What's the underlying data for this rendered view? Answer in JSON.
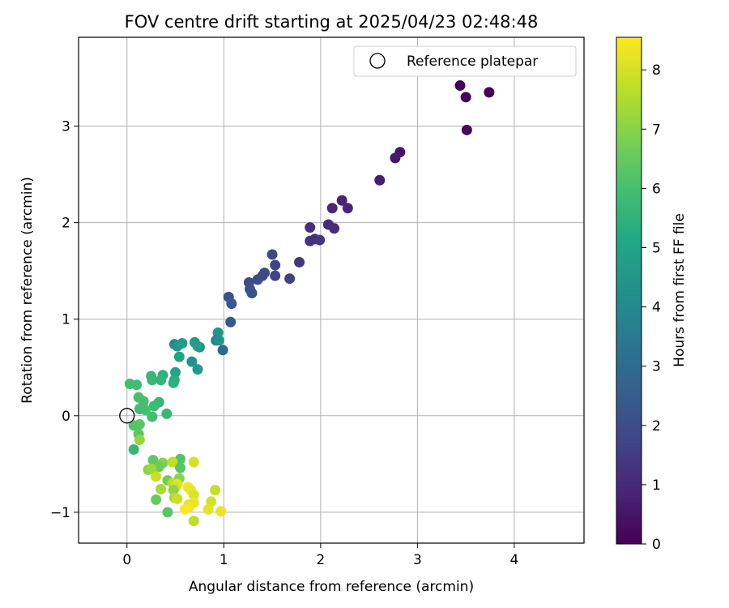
{
  "chart_data": {
    "type": "scatter",
    "title": "FOV centre drift starting at 2025/04/23 02:48:48",
    "xlabel": "Angular distance from reference (arcmin)",
    "ylabel": "Rotation from reference (arcmin)",
    "xlim": [
      -0.5,
      4.72
    ],
    "ylim": [
      -1.32,
      3.92
    ],
    "xticks": [
      0,
      1,
      2,
      3,
      4
    ],
    "yticks": [
      -1,
      0,
      1,
      2,
      3
    ],
    "xtick_labels": [
      "0",
      "1",
      "2",
      "3",
      "4"
    ],
    "ytick_labels": [
      "−1",
      "0",
      "1",
      "2",
      "3"
    ],
    "grid": true,
    "legend": {
      "position": "top-right",
      "entries": [
        {
          "label": "Reference platepar",
          "marker": "open-circle"
        }
      ]
    },
    "reference_point": {
      "x": 0,
      "y": 0
    },
    "colorbar": {
      "label": "Hours from first FF file",
      "min": 0,
      "max": 8.55,
      "ticks": [
        0,
        1,
        2,
        3,
        4,
        5,
        6,
        7,
        8
      ],
      "tick_labels": [
        "0",
        "1",
        "2",
        "3",
        "4",
        "5",
        "6",
        "7",
        "8"
      ],
      "colormap": "viridis",
      "colors": [
        "#440154",
        "#482475",
        "#414487",
        "#355f8d",
        "#2a788e",
        "#21918c",
        "#22a884",
        "#44bf70",
        "#7ad151",
        "#bddf26",
        "#fde725"
      ]
    },
    "series": [
      {
        "points": [
          {
            "x": 3.44,
            "y": 3.42,
            "c": 0.05
          },
          {
            "x": 3.5,
            "y": 3.3,
            "c": 0.12
          },
          {
            "x": 3.74,
            "y": 3.35,
            "c": 0.1
          },
          {
            "x": 3.51,
            "y": 2.96,
            "c": 0.2
          },
          {
            "x": 2.82,
            "y": 2.73,
            "c": 0.5
          },
          {
            "x": 2.77,
            "y": 2.67,
            "c": 0.55
          },
          {
            "x": 2.61,
            "y": 2.44,
            "c": 0.7
          },
          {
            "x": 2.22,
            "y": 2.23,
            "c": 0.9
          },
          {
            "x": 2.28,
            "y": 2.15,
            "c": 0.95
          },
          {
            "x": 2.12,
            "y": 2.15,
            "c": 1.0
          },
          {
            "x": 2.08,
            "y": 1.98,
            "c": 1.05
          },
          {
            "x": 2.14,
            "y": 1.94,
            "c": 1.1
          },
          {
            "x": 1.89,
            "y": 1.95,
            "c": 1.15
          },
          {
            "x": 1.94,
            "y": 1.83,
            "c": 1.2
          },
          {
            "x": 1.89,
            "y": 1.81,
            "c": 1.25
          },
          {
            "x": 1.99,
            "y": 1.82,
            "c": 1.3
          },
          {
            "x": 1.78,
            "y": 1.59,
            "c": 1.35
          },
          {
            "x": 1.5,
            "y": 1.67,
            "c": 1.8
          },
          {
            "x": 1.53,
            "y": 1.56,
            "c": 1.75
          },
          {
            "x": 1.53,
            "y": 1.45,
            "c": 1.7
          },
          {
            "x": 1.68,
            "y": 1.42,
            "c": 1.6
          },
          {
            "x": 1.42,
            "y": 1.48,
            "c": 1.85
          },
          {
            "x": 1.4,
            "y": 1.45,
            "c": 1.9
          },
          {
            "x": 1.35,
            "y": 1.41,
            "c": 1.95
          },
          {
            "x": 1.26,
            "y": 1.38,
            "c": 2.0
          },
          {
            "x": 1.27,
            "y": 1.31,
            "c": 2.05
          },
          {
            "x": 1.29,
            "y": 1.27,
            "c": 2.1
          },
          {
            "x": 1.05,
            "y": 1.23,
            "c": 2.2
          },
          {
            "x": 1.08,
            "y": 1.16,
            "c": 2.3
          },
          {
            "x": 1.07,
            "y": 0.97,
            "c": 2.4
          },
          {
            "x": 0.99,
            "y": 0.68,
            "c": 2.9
          },
          {
            "x": 0.94,
            "y": 0.86,
            "c": 4.5
          },
          {
            "x": 0.92,
            "y": 0.78,
            "c": 3.6
          },
          {
            "x": 0.95,
            "y": 0.78,
            "c": 4.4
          },
          {
            "x": 0.49,
            "y": 0.74,
            "c": 3.9
          },
          {
            "x": 0.52,
            "y": 0.72,
            "c": 4.4
          },
          {
            "x": 0.57,
            "y": 0.75,
            "c": 4.7
          },
          {
            "x": 0.7,
            "y": 0.76,
            "c": 4.6
          },
          {
            "x": 0.75,
            "y": 0.71,
            "c": 4.1
          },
          {
            "x": 0.73,
            "y": 0.72,
            "c": 4.8
          },
          {
            "x": 0.67,
            "y": 0.56,
            "c": 4.3
          },
          {
            "x": 0.54,
            "y": 0.61,
            "c": 4.9
          },
          {
            "x": 0.73,
            "y": 0.48,
            "c": 4.7
          },
          {
            "x": 0.5,
            "y": 0.45,
            "c": 5.0
          },
          {
            "x": 0.49,
            "y": 0.37,
            "c": 5.3
          },
          {
            "x": 0.48,
            "y": 0.34,
            "c": 5.4
          },
          {
            "x": 0.37,
            "y": 0.42,
            "c": 5.4
          },
          {
            "x": 0.35,
            "y": 0.37,
            "c": 5.6
          },
          {
            "x": 0.25,
            "y": 0.41,
            "c": 5.6
          },
          {
            "x": 0.26,
            "y": 0.37,
            "c": 5.7
          },
          {
            "x": 0.03,
            "y": 0.33,
            "c": 5.9
          },
          {
            "x": 0.1,
            "y": 0.32,
            "c": 5.9
          },
          {
            "x": 0.12,
            "y": 0.19,
            "c": 6.0
          },
          {
            "x": 0.17,
            "y": 0.15,
            "c": 6.0
          },
          {
            "x": 0.33,
            "y": 0.14,
            "c": 5.7
          },
          {
            "x": 0.28,
            "y": 0.1,
            "c": 5.8
          },
          {
            "x": 0.13,
            "y": 0.07,
            "c": 5.9
          },
          {
            "x": 0.19,
            "y": 0.06,
            "c": 6.0
          },
          {
            "x": 0.41,
            "y": 0.02,
            "c": 5.7
          },
          {
            "x": 0.26,
            "y": -0.01,
            "c": 5.9
          },
          {
            "x": 0.07,
            "y": -0.1,
            "c": 6.2
          },
          {
            "x": 0.13,
            "y": -0.09,
            "c": 6.3
          },
          {
            "x": 0.12,
            "y": -0.19,
            "c": 6.3
          },
          {
            "x": 0.13,
            "y": -0.25,
            "c": 7.2
          },
          {
            "x": 0.07,
            "y": -0.35,
            "c": 5.6
          },
          {
            "x": 0.55,
            "y": -0.45,
            "c": 6.2
          },
          {
            "x": 0.27,
            "y": -0.46,
            "c": 6.4
          },
          {
            "x": 0.37,
            "y": -0.49,
            "c": 6.9
          },
          {
            "x": 0.47,
            "y": -0.48,
            "c": 7.7
          },
          {
            "x": 0.69,
            "y": -0.48,
            "c": 8.0
          },
          {
            "x": 0.33,
            "y": -0.53,
            "c": 6.6
          },
          {
            "x": 0.55,
            "y": -0.54,
            "c": 6.3
          },
          {
            "x": 0.22,
            "y": -0.56,
            "c": 7.0
          },
          {
            "x": 0.25,
            "y": -0.55,
            "c": 7.3
          },
          {
            "x": 0.3,
            "y": -0.63,
            "c": 7.8
          },
          {
            "x": 0.54,
            "y": -0.65,
            "c": 7.0
          },
          {
            "x": 0.42,
            "y": -0.67,
            "c": 6.6
          },
          {
            "x": 0.47,
            "y": -0.7,
            "c": 7.6
          },
          {
            "x": 0.52,
            "y": -0.71,
            "c": 8.2
          },
          {
            "x": 0.5,
            "y": -0.74,
            "c": 8.0
          },
          {
            "x": 0.35,
            "y": -0.76,
            "c": 7.4
          },
          {
            "x": 0.48,
            "y": -0.77,
            "c": 7.1
          },
          {
            "x": 0.63,
            "y": -0.74,
            "c": 8.4
          },
          {
            "x": 0.66,
            "y": -0.77,
            "c": 8.3
          },
          {
            "x": 0.91,
            "y": -0.77,
            "c": 7.8
          },
          {
            "x": 0.69,
            "y": -0.82,
            "c": 8.1
          },
          {
            "x": 0.49,
            "y": -0.85,
            "c": 7.5
          },
          {
            "x": 0.3,
            "y": -0.87,
            "c": 6.5
          },
          {
            "x": 0.52,
            "y": -0.86,
            "c": 7.9
          },
          {
            "x": 0.69,
            "y": -0.9,
            "c": 8.3
          },
          {
            "x": 0.87,
            "y": -0.89,
            "c": 8.0
          },
          {
            "x": 0.64,
            "y": -0.92,
            "c": 8.2
          },
          {
            "x": 0.64,
            "y": -0.95,
            "c": 8.4
          },
          {
            "x": 0.6,
            "y": -0.97,
            "c": 8.5
          },
          {
            "x": 0.84,
            "y": -0.97,
            "c": 8.2
          },
          {
            "x": 0.42,
            "y": -1.0,
            "c": 6.3
          },
          {
            "x": 0.97,
            "y": -0.99,
            "c": 8.3
          },
          {
            "x": 0.69,
            "y": -1.09,
            "c": 7.7
          }
        ]
      }
    ]
  }
}
